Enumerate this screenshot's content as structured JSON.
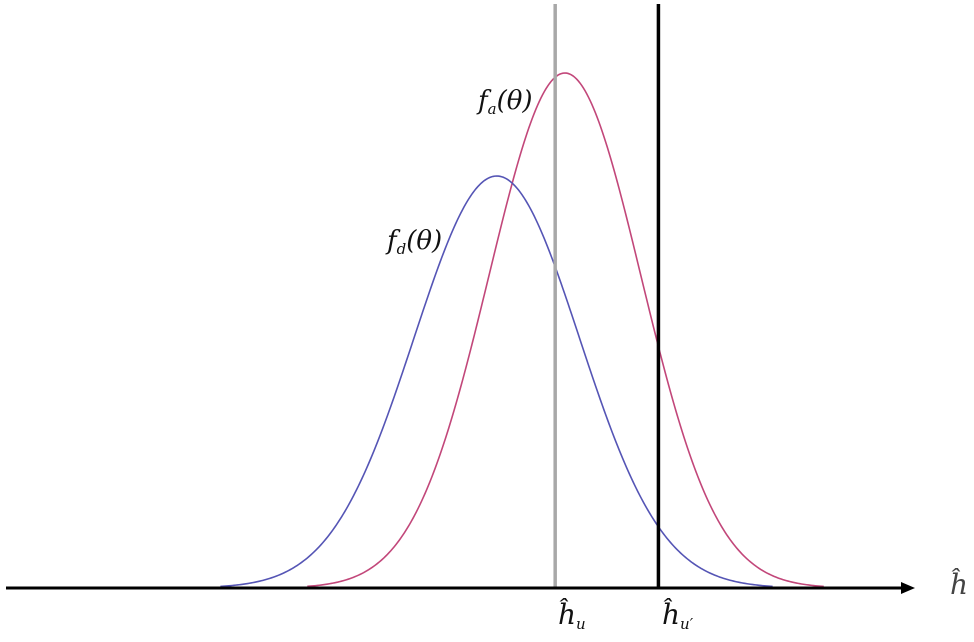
{
  "diagram": {
    "axis_label": "ĥ",
    "curves": [
      {
        "name": "f_a(θ)",
        "label_main": "f",
        "label_sub": "a",
        "label_arg": "(θ)",
        "color": "#c2477a",
        "mean": 0.58,
        "peak": 1.0,
        "sigma": 0.078
      },
      {
        "name": "f_d(θ)",
        "label_main": "f",
        "label_sub": "d",
        "label_arg": "(θ)",
        "color": "#5555b5",
        "mean": 0.51,
        "peak": 0.8,
        "sigma": 0.085
      }
    ],
    "thresholds": [
      {
        "name": "ĥ_u",
        "label_main": "ĥ",
        "label_sub": "u",
        "color": "#a8a8a8",
        "position": 0.57
      },
      {
        "name": "ĥ_u'",
        "label_main": "ĥ",
        "label_sub": "u′",
        "color": "#000000",
        "position": 0.676
      }
    ]
  }
}
